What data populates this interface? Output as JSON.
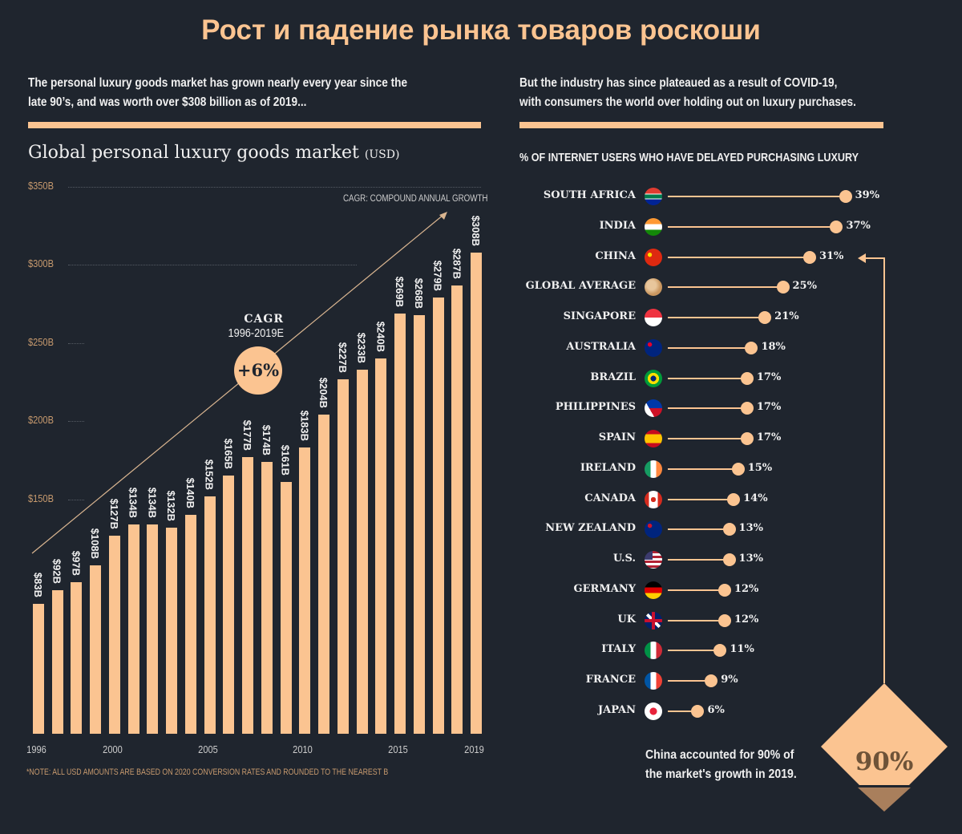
{
  "title": "Рост и падение рынка товаров роскоши",
  "left_intro": [
    "The personal luxury goods market has grown nearly every year since the",
    "late 90’s, and was worth over $308 billion as of 2019..."
  ],
  "right_intro": [
    "But the industry has since plateaued as a result of COVID-19,",
    "with consumers the world over holding out on luxury purchases."
  ],
  "colors": {
    "background": "#1f252e",
    "accent": "#fbc491",
    "accent_dark": "#a97f5c"
  },
  "chart_data": [
    {
      "type": "bar",
      "title": "Global personal luxury goods market",
      "title_unit": "(USD)",
      "ylim": [
        0,
        350
      ],
      "ytick_labels": [
        "$350B",
        "$300B",
        "$250B",
        "$200B",
        "$150B"
      ],
      "ytick_values": [
        350,
        300,
        250,
        200,
        150
      ],
      "grid": true,
      "categories": [
        1996,
        1997,
        1998,
        1999,
        2000,
        2001,
        2002,
        2003,
        2004,
        2005,
        2006,
        2007,
        2008,
        2009,
        2010,
        2011,
        2012,
        2013,
        2014,
        2015,
        2016,
        2017,
        2018,
        2019
      ],
      "values": [
        83,
        92,
        97,
        108,
        127,
        134,
        134,
        132,
        140,
        152,
        165,
        177,
        174,
        161,
        183,
        204,
        227,
        233,
        240,
        269,
        268,
        279,
        287,
        308
      ],
      "data_labels": [
        "$83B",
        "$92B",
        "$97B",
        "$108B",
        "$127B",
        "$134B",
        "$134B",
        "$132B",
        "$140B",
        "$152B",
        "$165B",
        "$177B",
        "$174B",
        "$161B",
        "$183B",
        "$204B",
        "$227B",
        "$233B",
        "$240B",
        "$269B",
        "$268B",
        "$279B",
        "$287B",
        "$308B"
      ],
      "xtick_labels": [
        "1996",
        "2000",
        "2005",
        "2010",
        "2015",
        "2019"
      ],
      "annotations": {
        "cagr_definition": "CAGR: COMPOUND ANNUAL GROWTH",
        "cagr_title": "CAGR",
        "cagr_period": "1996-2019E",
        "cagr_value": "+6%"
      },
      "note": "*NOTE: ALL USD AMOUNTS ARE BASED ON 2020 CONVERSION RATES AND ROUNDED TO THE NEAREST B"
    },
    {
      "type": "dot",
      "title": "% OF INTERNET USERS WHO HAVE DELAYED PURCHASING LUXURY",
      "xlim": [
        0,
        40
      ],
      "categories": [
        "SOUTH AFRICA",
        "INDIA",
        "CHINA",
        "GLOBAL AVERAGE",
        "SINGAPORE",
        "AUSTRALIA",
        "BRAZIL",
        "PHILIPPINES",
        "SPAIN",
        "IRELAND",
        "CANADA",
        "NEW ZEALAND",
        "U.S.",
        "GERMANY",
        "UK",
        "ITALY",
        "FRANCE",
        "JAPAN"
      ],
      "values": [
        39,
        37,
        31,
        25,
        21,
        18,
        17,
        17,
        17,
        15,
        14,
        13,
        13,
        12,
        12,
        11,
        9,
        6
      ],
      "labels": [
        "39%",
        "37%",
        "31%",
        "25%",
        "21%",
        "18%",
        "17%",
        "17%",
        "17%",
        "15%",
        "14%",
        "13%",
        "13%",
        "12%",
        "12%",
        "11%",
        "9%",
        "6%"
      ],
      "icons": [
        "flag-south-africa",
        "flag-india",
        "flag-china",
        "globe",
        "flag-singapore",
        "flag-australia",
        "flag-brazil",
        "flag-philippines",
        "flag-spain",
        "flag-ireland",
        "flag-canada",
        "flag-new-zealand",
        "flag-us",
        "flag-germany",
        "flag-uk",
        "flag-italy",
        "flag-france",
        "flag-japan"
      ]
    }
  ],
  "callout": {
    "text": [
      "China accounted for 90% of",
      "the market's growth in 2019."
    ],
    "value": "90%",
    "fill_fraction": 0.9
  }
}
